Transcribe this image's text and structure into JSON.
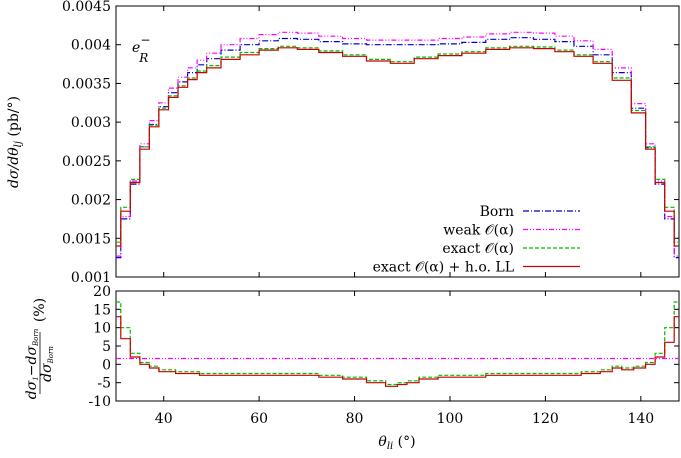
{
  "chart_data": [
    {
      "type": "line",
      "panel": "top",
      "annotation": "e⁻R",
      "ylabel": "dσ/dθlj (pb/°)",
      "xlim": [
        30,
        148
      ],
      "ylim": [
        0.001,
        0.0045
      ],
      "yticks": [
        0.001,
        0.0015,
        0.002,
        0.0025,
        0.003,
        0.0035,
        0.004,
        0.0045
      ],
      "ytick_labels": [
        "0.001",
        "0.0015",
        "0.002",
        "0.0025",
        "0.003",
        "0.0035",
        "0.004",
        "0.0045"
      ],
      "xticks": [
        40,
        60,
        80,
        100,
        120,
        140
      ],
      "legend_position": "bottom-right",
      "series": [
        {
          "name": "Born",
          "color": "#0000cc",
          "style": "dashdot",
          "x": [
            30,
            32,
            34,
            36,
            38,
            40,
            42,
            44,
            46,
            48,
            50,
            54,
            58,
            62,
            66,
            70,
            75,
            80,
            85,
            90,
            95,
            100,
            105,
            110,
            115,
            120,
            124,
            128,
            132,
            136,
            140,
            142,
            144,
            146,
            148
          ],
          "y": [
            0.00125,
            0.00175,
            0.0022,
            0.00268,
            0.00297,
            0.0032,
            0.00338,
            0.00352,
            0.00364,
            0.00374,
            0.00382,
            0.00393,
            0.004,
            0.00405,
            0.00408,
            0.00407,
            0.00404,
            0.00401,
            0.004,
            0.004,
            0.004,
            0.00401,
            0.00403,
            0.00407,
            0.00409,
            0.00407,
            0.00404,
            0.00398,
            0.00387,
            0.00364,
            0.00318,
            0.00267,
            0.0022,
            0.00175,
            0.00125
          ]
        },
        {
          "name": "weak 𝒪(α)",
          "color": "#ff00ff",
          "style": "dashdotdot",
          "x": [
            30,
            32,
            34,
            36,
            38,
            40,
            42,
            44,
            46,
            48,
            50,
            54,
            58,
            62,
            66,
            70,
            75,
            80,
            85,
            90,
            95,
            100,
            105,
            110,
            115,
            120,
            124,
            128,
            132,
            136,
            140,
            142,
            144,
            146,
            148
          ],
          "y": [
            0.00127,
            0.00178,
            0.00224,
            0.00272,
            0.00302,
            0.00325,
            0.00344,
            0.00358,
            0.0037,
            0.0038,
            0.00389,
            0.004,
            0.00408,
            0.00413,
            0.00416,
            0.00415,
            0.00411,
            0.00408,
            0.00406,
            0.00406,
            0.00406,
            0.00408,
            0.0041,
            0.00414,
            0.00416,
            0.00415,
            0.00411,
            0.00405,
            0.00394,
            0.0037,
            0.00324,
            0.00272,
            0.00224,
            0.00178,
            0.00127
          ]
        },
        {
          "name": "exact 𝒪(α)",
          "color": "#00bb00",
          "style": "dashed",
          "x": [
            30,
            32,
            34,
            36,
            38,
            40,
            42,
            44,
            46,
            48,
            50,
            54,
            58,
            62,
            66,
            70,
            75,
            80,
            85,
            90,
            95,
            100,
            105,
            110,
            115,
            120,
            124,
            128,
            132,
            136,
            140,
            142,
            144,
            146,
            148
          ],
          "y": [
            0.00145,
            0.0019,
            0.00226,
            0.00268,
            0.00296,
            0.00318,
            0.00334,
            0.00347,
            0.00357,
            0.00366,
            0.00373,
            0.00384,
            0.0039,
            0.00395,
            0.00398,
            0.00396,
            0.00392,
            0.00387,
            0.00381,
            0.00378,
            0.00384,
            0.00388,
            0.00391,
            0.00396,
            0.00398,
            0.00397,
            0.00393,
            0.00387,
            0.00378,
            0.00357,
            0.00315,
            0.00268,
            0.00226,
            0.0019,
            0.00145
          ]
        },
        {
          "name": "exact 𝒪(α) + h.o. LL",
          "color": "#cc0000",
          "style": "solid",
          "x": [
            30,
            32,
            34,
            36,
            38,
            40,
            42,
            44,
            46,
            48,
            50,
            54,
            58,
            62,
            66,
            70,
            75,
            80,
            85,
            90,
            95,
            100,
            105,
            110,
            115,
            120,
            124,
            128,
            132,
            136,
            140,
            142,
            144,
            146,
            148
          ],
          "y": [
            0.0014,
            0.00185,
            0.00222,
            0.00265,
            0.00294,
            0.00316,
            0.00332,
            0.00345,
            0.00355,
            0.00364,
            0.0037,
            0.00381,
            0.00387,
            0.00393,
            0.00396,
            0.00394,
            0.0039,
            0.00385,
            0.00379,
            0.00376,
            0.00382,
            0.00386,
            0.00389,
            0.00394,
            0.00396,
            0.00395,
            0.00391,
            0.00385,
            0.00376,
            0.00354,
            0.00312,
            0.00265,
            0.00222,
            0.00185,
            0.0014
          ]
        }
      ]
    },
    {
      "type": "line",
      "panel": "bottom",
      "ylabel": "(dσ₁−dσBorn)/dσBorn (%)",
      "xlabel": "θli (°)",
      "xlim": [
        30,
        148
      ],
      "ylim": [
        -10,
        20
      ],
      "yticks": [
        -10,
        -5,
        0,
        5,
        10,
        15,
        20
      ],
      "ytick_labels": [
        "-10",
        "-5",
        "0",
        "5",
        "10",
        "15",
        "20"
      ],
      "xticks": [
        40,
        60,
        80,
        100,
        120,
        140
      ],
      "xtick_labels": [
        "40",
        "60",
        "80",
        "100",
        "120",
        "140"
      ],
      "series": [
        {
          "name": "weak 𝒪(α)",
          "color": "#ff00ff",
          "style": "dashdotdot",
          "x": [
            30,
            148
          ],
          "y": [
            1.6,
            1.6
          ]
        },
        {
          "name": "exact 𝒪(α)",
          "color": "#00bb00",
          "style": "dashed",
          "x": [
            30,
            32,
            34,
            36,
            38,
            40,
            45,
            50,
            55,
            60,
            65,
            70,
            75,
            80,
            85,
            88,
            90,
            92,
            95,
            100,
            105,
            110,
            115,
            120,
            125,
            130,
            133,
            135,
            137,
            140,
            142,
            144,
            146,
            148
          ],
          "y": [
            17,
            10,
            3,
            0.5,
            -0.5,
            -1.5,
            -2,
            -2.5,
            -2.5,
            -2.5,
            -2.5,
            -2.5,
            -3,
            -3.5,
            -4.5,
            -5.5,
            -5,
            -4.5,
            -3.5,
            -3,
            -3,
            -2.5,
            -2.5,
            -2.5,
            -2.5,
            -2,
            -1.5,
            -0.5,
            -1,
            -0.5,
            0.5,
            3,
            10,
            17
          ]
        },
        {
          "name": "exact 𝒪(α) + h.o. LL",
          "color": "#cc0000",
          "style": "solid",
          "x": [
            30,
            32,
            34,
            36,
            38,
            40,
            45,
            50,
            55,
            60,
            65,
            70,
            75,
            80,
            85,
            88,
            90,
            92,
            95,
            100,
            105,
            110,
            115,
            120,
            125,
            130,
            133,
            135,
            137,
            140,
            142,
            144,
            146,
            148
          ],
          "y": [
            13,
            7,
            2,
            0,
            -1,
            -2,
            -2.5,
            -3,
            -3,
            -3,
            -3,
            -3,
            -3.5,
            -4,
            -5,
            -6,
            -5.5,
            -5,
            -4,
            -3.5,
            -3.5,
            -3,
            -3,
            -3,
            -3,
            -2.5,
            -2,
            -1,
            -1.5,
            -1,
            0,
            2,
            6,
            13
          ]
        }
      ]
    }
  ]
}
